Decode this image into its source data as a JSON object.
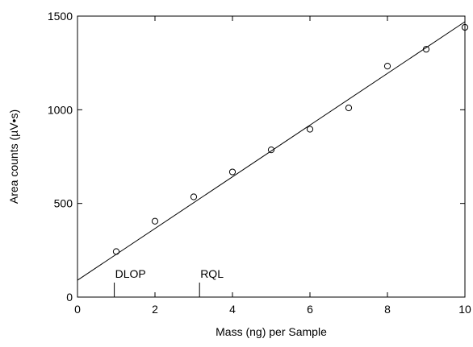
{
  "chart_data": {
    "type": "scatter",
    "xlabel": "Mass (ng) per Sample",
    "ylabel": "Area counts (µV•s)",
    "xlim": [
      0,
      10
    ],
    "ylim": [
      0,
      1500
    ],
    "x_ticks": [
      0,
      2,
      4,
      6,
      8,
      10
    ],
    "y_ticks": [
      0,
      500,
      1000,
      1500
    ],
    "x_tick_labels": [
      "0",
      "2",
      "4",
      "6",
      "8",
      "10"
    ],
    "y_tick_labels": [
      "0",
      "500",
      "1000",
      "1500"
    ],
    "grid": false,
    "legend": "none",
    "series": [
      {
        "marker": "open-circle",
        "x": [
          1,
          2,
          3,
          4,
          5,
          6,
          7,
          8,
          9,
          10
        ],
        "y": [
          243,
          405,
          535,
          668,
          786,
          896,
          1010,
          1233,
          1323,
          1440
        ]
      }
    ],
    "fit_line": {
      "x": [
        0,
        10
      ],
      "y": [
        90,
        1470
      ]
    },
    "annotations": [
      {
        "label": "DLOP",
        "x": 0.95
      },
      {
        "label": "RQL",
        "x": 3.15
      }
    ]
  }
}
